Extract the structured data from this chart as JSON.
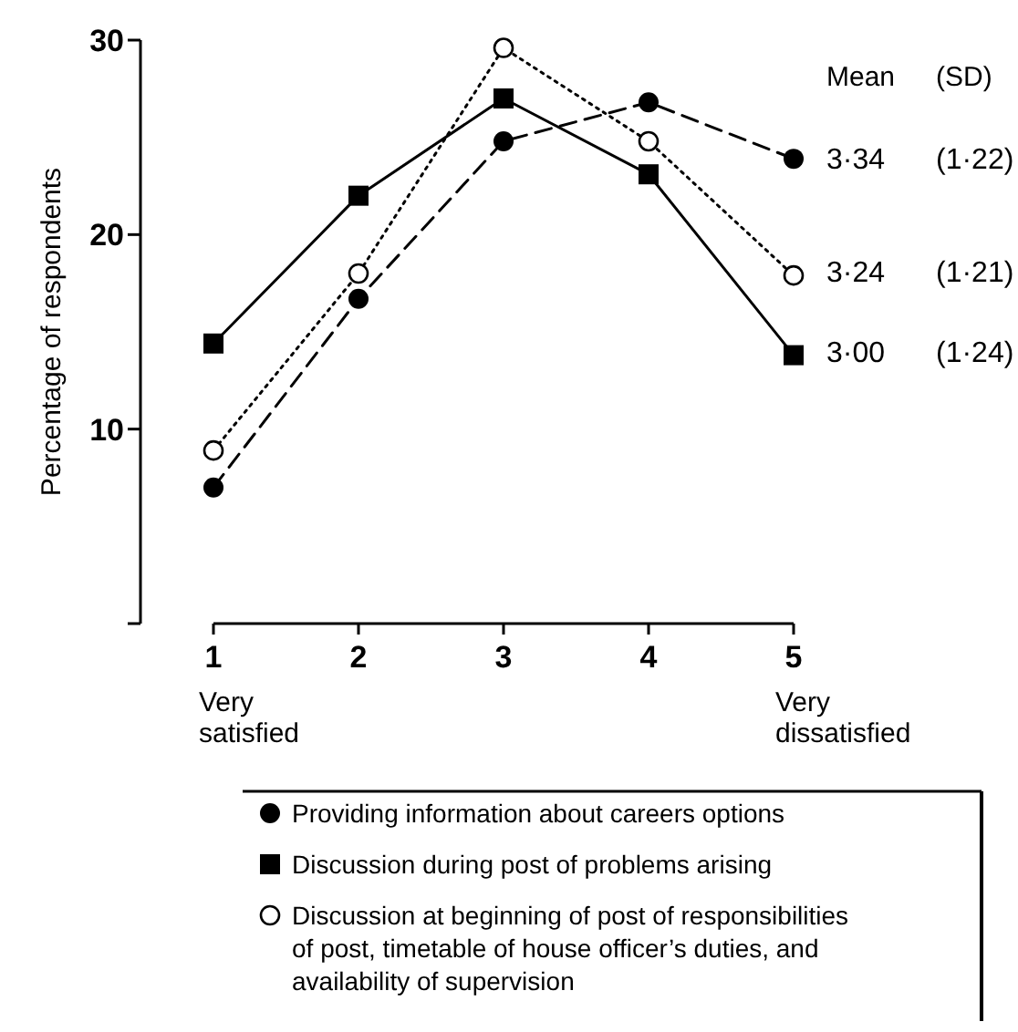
{
  "chart_data": {
    "type": "line",
    "ylabel": "Percentage of respondents",
    "x": [
      1,
      2,
      3,
      4,
      5
    ],
    "xlim": [
      1,
      5
    ],
    "xticks": [
      1,
      2,
      3,
      4,
      5
    ],
    "ylim": [
      0,
      30
    ],
    "yticks": [
      {
        "value": 0,
        "label": null
      },
      10,
      20,
      30
    ],
    "legend": "bottom",
    "grid": false,
    "series": [
      {
        "name": "Providing information about careers options",
        "color": "#000000",
        "values": [
          7.0,
          16.7,
          24.8,
          26.8,
          23.9
        ],
        "marker": "circle",
        "line_style": "dashed"
      },
      {
        "name": "Discussion during post of problems arising",
        "color": "#000000",
        "values": [
          14.4,
          22.0,
          27.0,
          23.1,
          13.8
        ],
        "marker": "square",
        "line_style": "solid"
      },
      {
        "name": "Discussion at beginning of post of responsibilities of post, timetable of house officer’s duties, and availability of supervision",
        "color": "#000000",
        "values": [
          8.9,
          18.0,
          29.6,
          24.8,
          17.9
        ],
        "marker": "circle-open",
        "line_style": "dotted"
      }
    ],
    "annotations": [
      "Very satisfied",
      "Very dissatisfied",
      "Mean",
      "(SD)",
      "3·34",
      "(1·22)",
      "3·24",
      "(1·21)",
      "3·00",
      "(1·24)"
    ]
  }
}
